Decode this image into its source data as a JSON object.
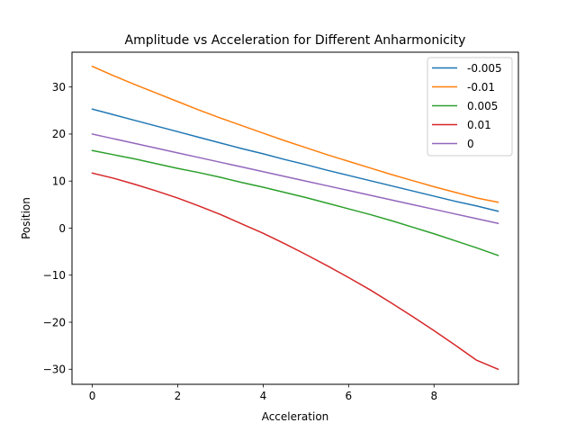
{
  "chart_data": {
    "type": "line",
    "title": "Amplitude vs Acceleration for Different Anharmonicity",
    "xlabel": "Acceleration",
    "ylabel": "Position",
    "xlim": [
      -0.475,
      9.975
    ],
    "ylim": [
      -33.2,
      37.4
    ],
    "xticks": [
      0,
      2,
      4,
      6,
      8
    ],
    "yticks": [
      -30,
      -20,
      -10,
      0,
      10,
      20,
      30
    ],
    "xtick_labels": [
      "0",
      "2",
      "4",
      "6",
      "8"
    ],
    "ytick_labels": [
      "−30",
      "−20",
      "−10",
      "0",
      "10",
      "20",
      "30"
    ],
    "grid": false,
    "legend_position": "top-right",
    "x": [
      0,
      0.5,
      1,
      1.5,
      2,
      2.5,
      3,
      3.5,
      4,
      4.5,
      5,
      5.5,
      6,
      6.5,
      7,
      7.5,
      8,
      8.5,
      9,
      9.5
    ],
    "series": [
      {
        "name": "-0.005",
        "color": "#1f77b4",
        "values": [
          25.3,
          24.1,
          22.9,
          21.7,
          20.5,
          19.3,
          18.1,
          16.9,
          15.8,
          14.6,
          13.5,
          12.3,
          11.2,
          10.1,
          9.0,
          7.9,
          6.8,
          5.7,
          4.7,
          3.6
        ]
      },
      {
        "name": "-0.01",
        "color": "#ff7f0e",
        "values": [
          34.4,
          32.4,
          30.5,
          28.7,
          26.9,
          25.1,
          23.4,
          21.8,
          20.2,
          18.6,
          17.1,
          15.6,
          14.2,
          12.8,
          11.4,
          10.1,
          8.8,
          7.6,
          6.4,
          5.5
        ]
      },
      {
        "name": "0.005",
        "color": "#2ca02c",
        "values": [
          16.5,
          15.6,
          14.7,
          13.7,
          12.7,
          11.8,
          10.8,
          9.7,
          8.7,
          7.6,
          6.5,
          5.3,
          4.1,
          2.9,
          1.6,
          0.2,
          -1.2,
          -2.7,
          -4.2,
          -5.8
        ]
      },
      {
        "name": "0.01",
        "color": "#d62728",
        "values": [
          11.7,
          10.6,
          9.3,
          7.9,
          6.4,
          4.7,
          2.9,
          0.9,
          -1.1,
          -3.3,
          -5.6,
          -8.0,
          -10.5,
          -13.1,
          -15.9,
          -18.8,
          -21.8,
          -24.9,
          -28.1,
          -30.0
        ]
      },
      {
        "name": "0",
        "color": "#9467bd",
        "values": [
          20.0,
          19.0,
          18.0,
          17.0,
          16.0,
          15.0,
          14.0,
          13.0,
          12.0,
          11.0,
          10.0,
          9.0,
          8.0,
          7.0,
          6.0,
          5.0,
          4.0,
          3.0,
          2.0,
          1.0
        ]
      }
    ]
  }
}
